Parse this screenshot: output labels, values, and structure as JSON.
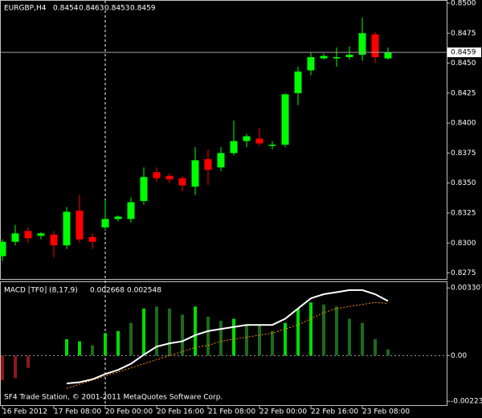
{
  "chart_data": [
    {
      "type": "candlestick",
      "title": "EURGBP,H4",
      "categories": [
        "16 Feb 2012",
        null,
        null,
        null,
        "17 Feb 08:00",
        null,
        null,
        null,
        "20 Feb 00:00",
        null,
        null,
        null,
        "20 Feb 16:00",
        null,
        null,
        null,
        "21 Feb 08:00",
        null,
        null,
        null,
        "22 Feb 00:00",
        null,
        null,
        null,
        "22 Feb 16:00",
        null,
        null,
        null,
        "23 Feb 08:00",
        null,
        null
      ],
      "open": [
        0.8289,
        0.8301,
        0.831,
        0.8306,
        0.8307,
        0.8298,
        0.8327,
        0.8305,
        0.8313,
        0.832,
        0.832,
        0.8335,
        0.8359,
        0.8356,
        0.8354,
        0.8347,
        0.837,
        0.8363,
        0.8375,
        0.8385,
        0.8387,
        0.8381,
        0.8382,
        0.8425,
        0.8444,
        0.8454,
        0.8454,
        0.8455,
        0.8457,
        0.8474,
        0.8454
      ],
      "high": [
        0.8303,
        0.8315,
        0.8313,
        0.8309,
        0.831,
        0.833,
        0.834,
        0.8308,
        0.8336,
        0.8323,
        0.8338,
        0.8363,
        0.8363,
        0.8358,
        0.8356,
        0.838,
        0.8378,
        0.838,
        0.8402,
        0.8391,
        0.8396,
        0.8385,
        0.8425,
        0.8447,
        0.8459,
        0.8458,
        0.8463,
        0.8464,
        0.8488,
        0.8476,
        0.8463
      ],
      "low": [
        0.8285,
        0.8298,
        0.83,
        0.8303,
        0.8288,
        0.8295,
        0.83,
        0.8295,
        0.831,
        0.8318,
        0.8317,
        0.8332,
        0.8351,
        0.835,
        0.8343,
        0.834,
        0.8348,
        0.836,
        0.8373,
        0.838,
        0.8381,
        0.8378,
        0.838,
        0.8415,
        0.844,
        0.8453,
        0.8447,
        0.8453,
        0.8452,
        0.845,
        0.8453
      ],
      "close": [
        0.8301,
        0.8308,
        0.8304,
        0.8308,
        0.8298,
        0.8326,
        0.8303,
        0.8301,
        0.832,
        0.8322,
        0.8334,
        0.8355,
        0.8354,
        0.8353,
        0.8348,
        0.8369,
        0.8361,
        0.8375,
        0.8385,
        0.8389,
        0.8383,
        0.8382,
        0.8424,
        0.8443,
        0.8455,
        0.8456,
        0.8455,
        0.8457,
        0.8475,
        0.8455,
        0.8459
      ],
      "up_color": "#00ff00",
      "down_color": "#ff0000",
      "ylim": [
        0.827,
        0.8502
      ],
      "yticks": [
        {
          "value": 0.85,
          "label": "0.8500"
        },
        0.8475,
        {
          "value": 0.845,
          "label": "0.8450"
        },
        0.8425,
        {
          "value": 0.84,
          "label": "0.8400"
        },
        0.8375,
        {
          "value": 0.835,
          "label": "0.8350"
        },
        0.8325,
        {
          "value": 0.83,
          "label": "0.8300"
        },
        0.8275
      ],
      "price_line": true
    },
    {
      "type": "macd",
      "title": "MACD [TF0] (8,17,9)",
      "histogram": {
        "values": [
          -0.0012,
          -0.0011,
          -0.0006,
          0,
          0,
          0.0008,
          0.0007,
          0.0005,
          0.0011,
          0.0012,
          0.0016,
          0.0023,
          0.0024,
          0.0023,
          0.002,
          0.0024,
          0.0019,
          0.0017,
          0.0018,
          0.0015,
          0.0015,
          0.0012,
          0.0016,
          0.0023,
          0.0026,
          0.0025,
          0.0024,
          0.0018,
          0.0016,
          0.0008,
          0.0003
        ],
        "colors": [
          "#8b1a1a",
          "#8b1a1a",
          "#8b1a1a",
          "#1b6b1b",
          "#1b6b1b",
          "#00dd00",
          "#00dd00",
          "#1b6b1b",
          "#00dd00",
          "#00dd00",
          "#1b6b1b",
          "#00dd00",
          "#1b6b1b",
          "#1b6b1b",
          "#1b6b1b",
          "#00dd00",
          "#1b6b1b",
          "#1b6b1b",
          "#00dd00",
          "#1b6b1b",
          "#1b6b1b",
          "#1b6b1b",
          "#00dd00",
          "#00dd00",
          "#00dd00",
          "#1b6b1b",
          "#1b6b1b",
          "#1b6b1b",
          "#1b6b1b",
          "#1b6b1b",
          "#1b6b1b"
        ]
      },
      "macd": {
        "color": "#ffffff",
        "values": [
          null,
          null,
          null,
          null,
          null,
          -0.00136,
          -0.0013,
          -0.00116,
          -0.0009,
          -0.0007,
          -0.0004,
          4e-05,
          0.00044,
          0.0006,
          0.0007,
          0.001,
          0.0012,
          0.0013,
          0.0014,
          0.0015,
          0.0015,
          0.0015,
          0.0018,
          0.0023,
          0.0028,
          0.003,
          0.0031,
          0.0032,
          0.0032,
          0.003,
          0.002668
        ]
      },
      "signal": {
        "color": "#ff8c00",
        "values": [
          null,
          null,
          null,
          null,
          null,
          -0.0016,
          -0.0014,
          -0.0012,
          -0.001,
          -0.0008,
          -0.0006,
          -0.0004,
          -0.0002,
          0,
          0.0002,
          0.0004,
          0.0005,
          0.0007,
          0.0008,
          0.0009,
          0.001,
          0.0011,
          0.0013,
          0.0015,
          0.0018,
          0.0021,
          0.0023,
          0.0024,
          0.0025,
          0.0026,
          0.002548
        ]
      },
      "ylim": [
        -0.00246,
        0.00359
      ],
      "yticks": [
        0.003307,
        {
          "value": 0,
          "label": "0.00"
        },
        -0.00223
      ],
      "zero_line": true
    }
  ],
  "footer": "SF4 Trade Station, © 2001-2011 MetaQuotes Software Corp."
}
